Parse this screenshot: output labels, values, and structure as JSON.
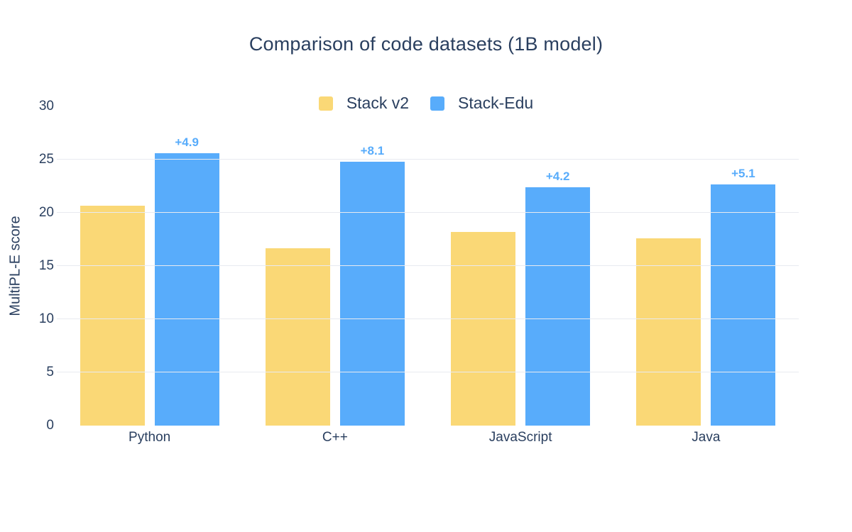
{
  "chart_data": {
    "type": "bar",
    "title": "Comparison of code datasets (1B model)",
    "ylabel": "MultiPL-E score",
    "xlabel": "",
    "categories": [
      "Python",
      "C++",
      "JavaScript",
      "Java"
    ],
    "series": [
      {
        "name": "Stack v2",
        "color": "#FAD876",
        "values": [
          20.7,
          16.7,
          18.2,
          17.6
        ]
      },
      {
        "name": "Stack-Edu",
        "color": "#58ACFB",
        "values": [
          25.6,
          24.8,
          22.4,
          22.7
        ]
      }
    ],
    "annotations": [
      "+4.9",
      "+8.1",
      "+4.2",
      "+5.1"
    ],
    "ylim": [
      0,
      30
    ],
    "yticks": [
      0,
      5,
      10,
      15,
      20,
      25,
      30
    ],
    "gridlines": [
      5,
      10,
      15,
      20,
      25
    ],
    "grid": true,
    "legend_position": "top-center"
  },
  "colors": {
    "text": "#2A3F5F",
    "grid": "#E8EAF0",
    "annotation": "#58ACFB",
    "background": "#FFFFFF"
  }
}
